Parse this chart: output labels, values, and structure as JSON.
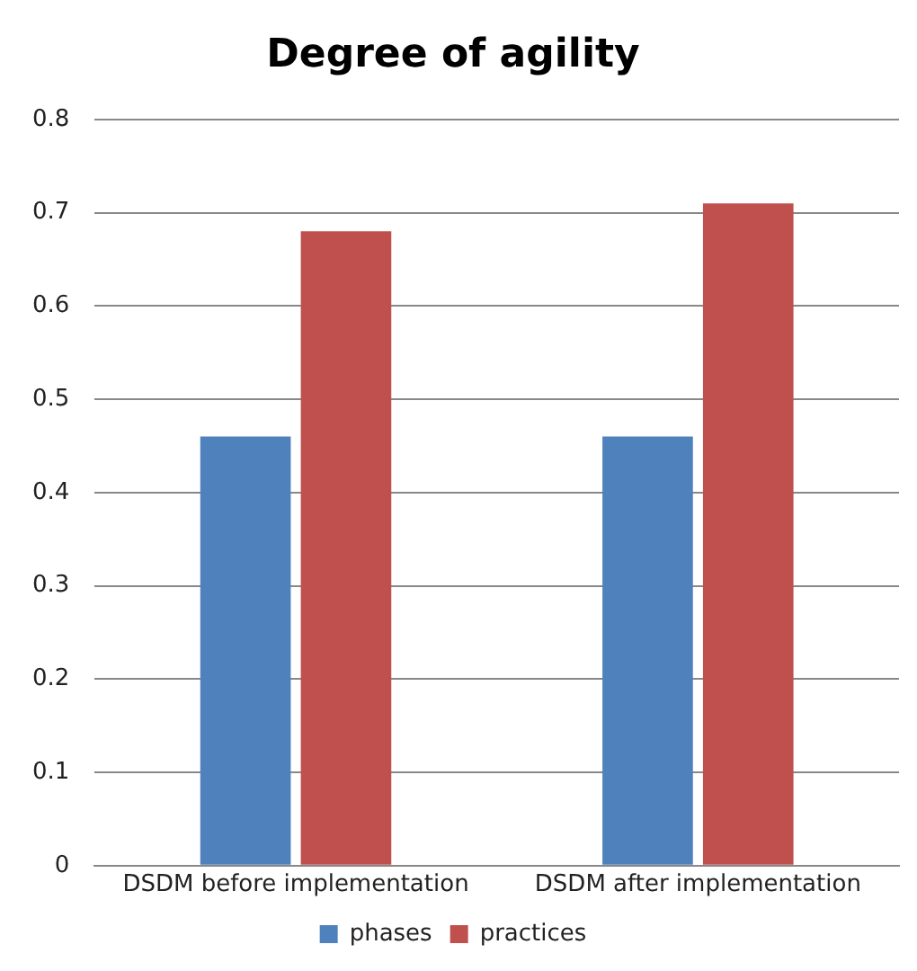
{
  "chart_data": {
    "type": "bar",
    "title": "Degree of agility",
    "categories": [
      "DSDM before implementation",
      "DSDM after implementation"
    ],
    "series": [
      {
        "name": "phases",
        "color": "#4f81bd",
        "values": [
          0.46,
          0.46
        ]
      },
      {
        "name": "practices",
        "color": "#c0504d",
        "values": [
          0.68,
          0.71
        ]
      }
    ],
    "ylim": [
      0,
      0.8
    ],
    "yticks": [
      0,
      0.1,
      0.2,
      0.3,
      0.4,
      0.5,
      0.6,
      0.7,
      0.8
    ],
    "grid": "y",
    "legend": "bottom"
  }
}
